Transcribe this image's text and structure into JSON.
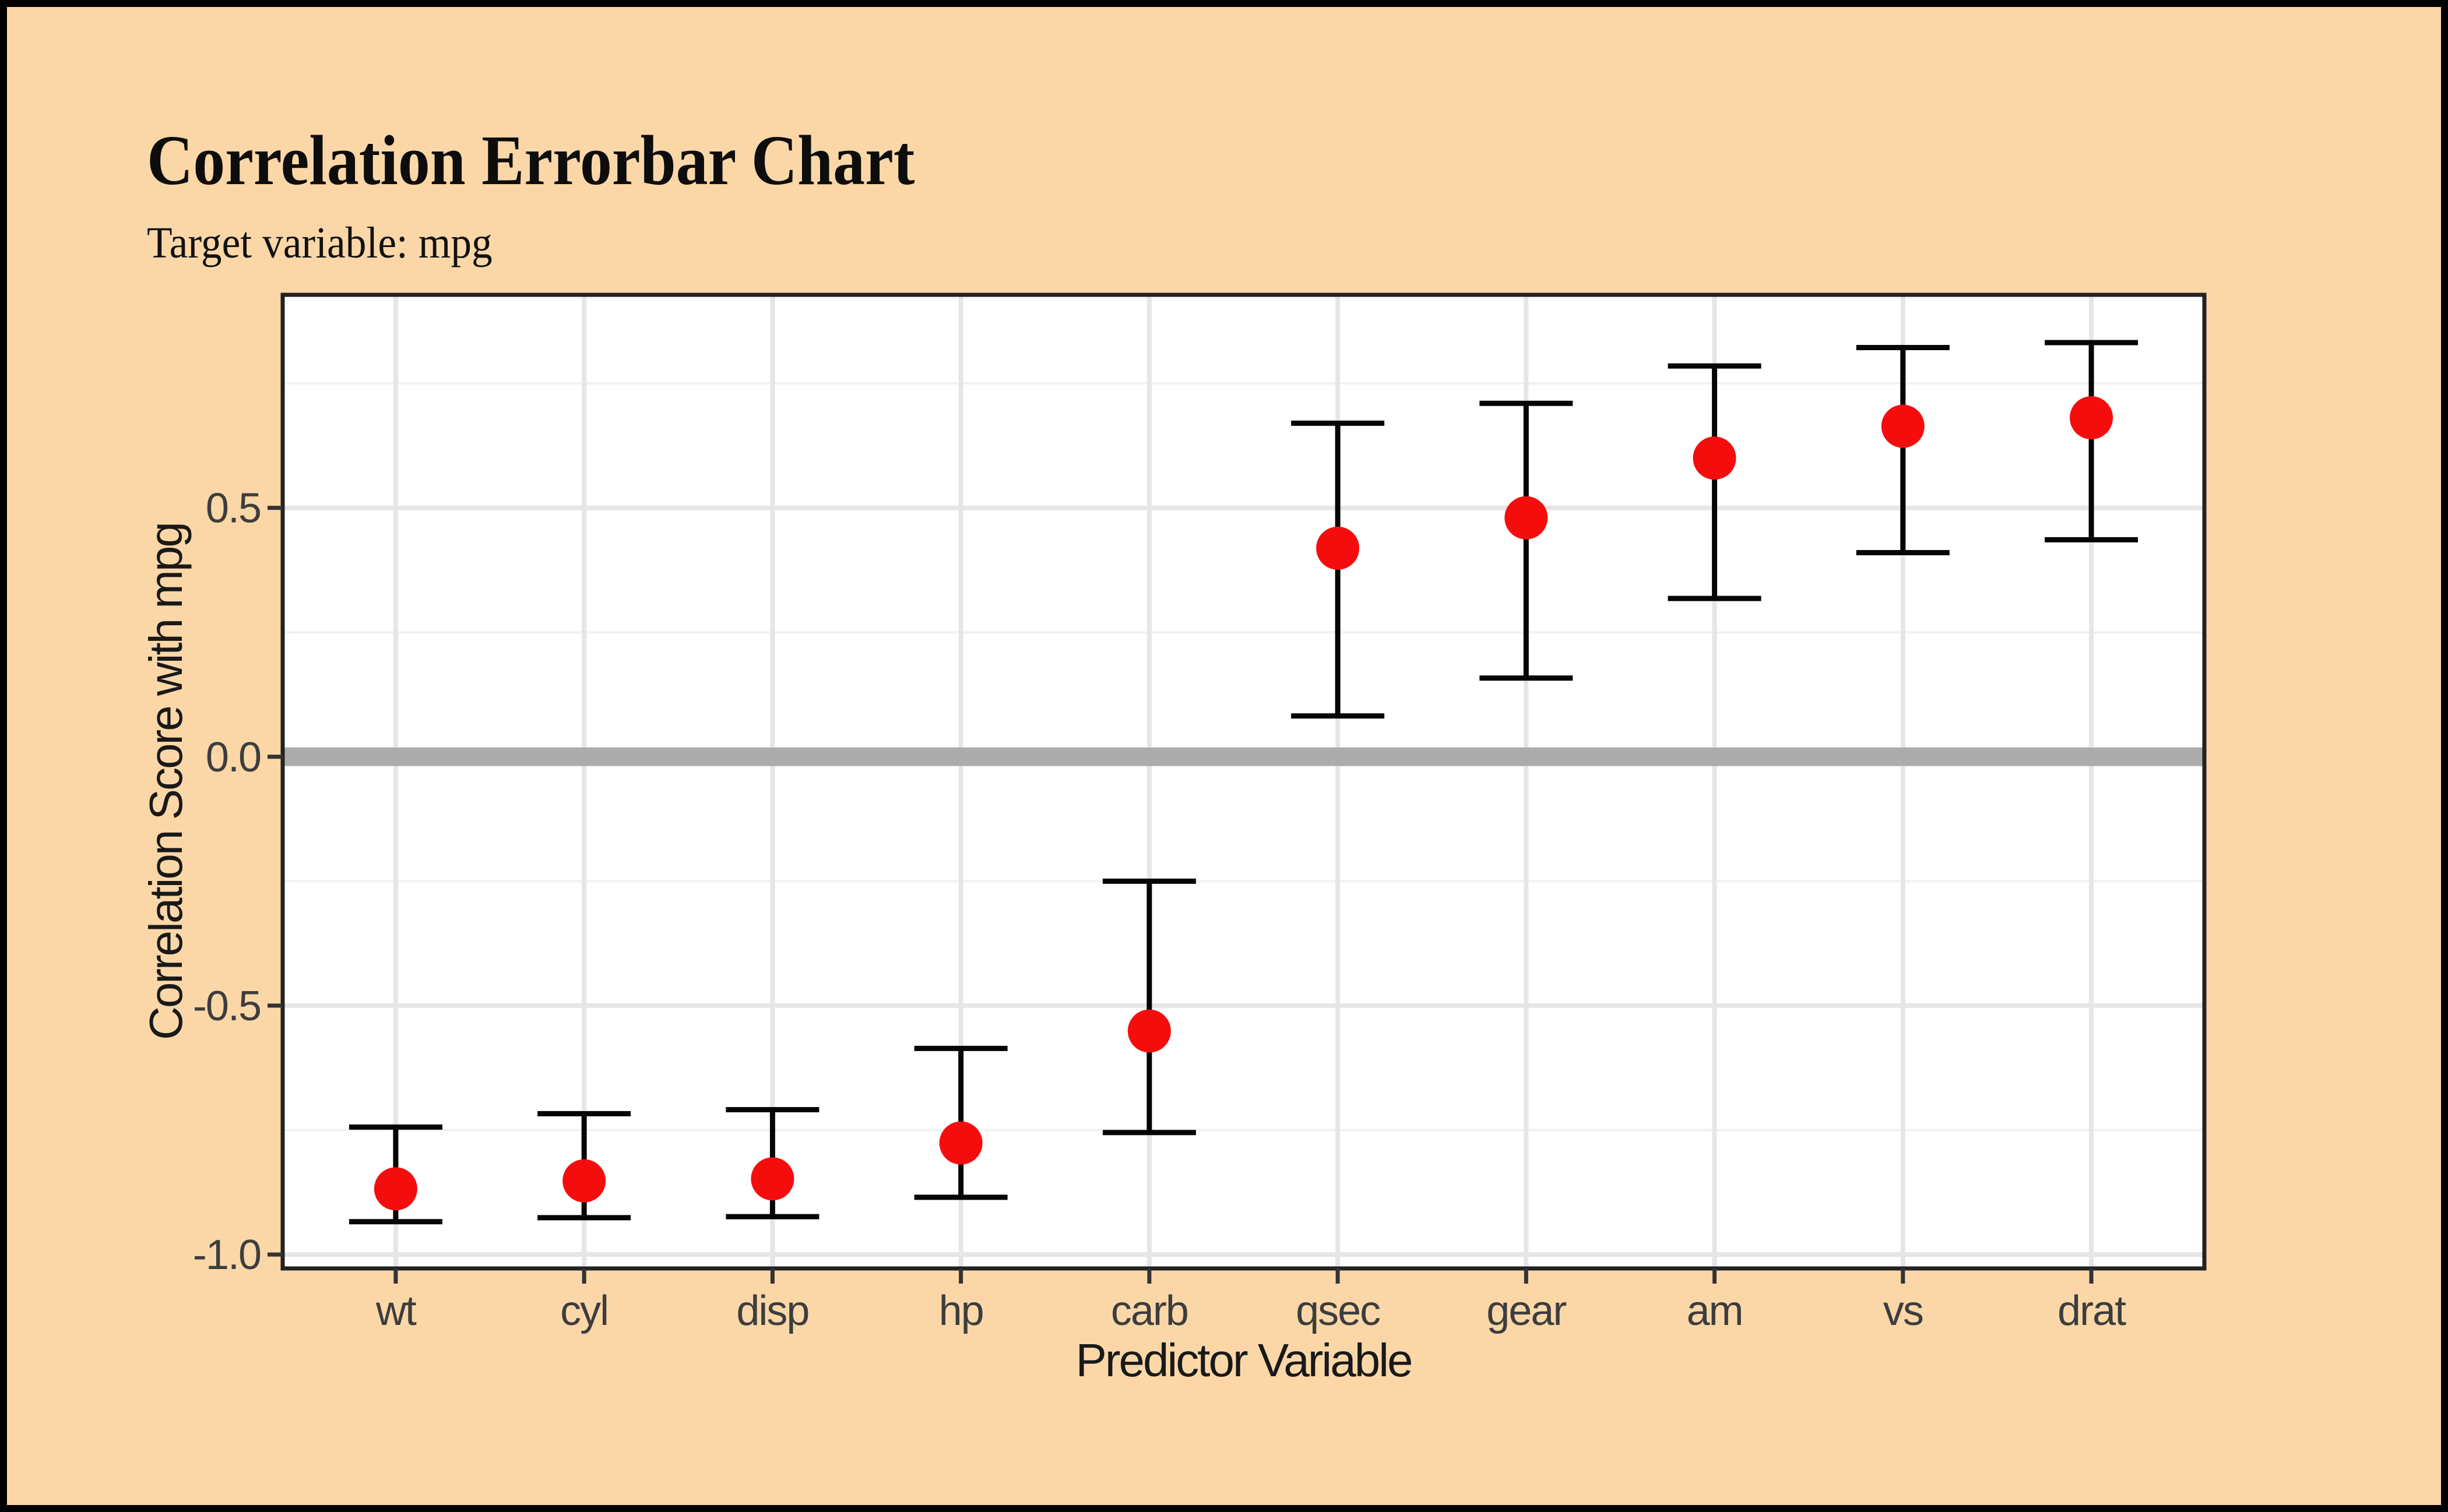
{
  "page": {
    "background": "#FBD7A8",
    "frame": "#000000"
  },
  "header": {
    "title": "Correlation Errorbar Chart",
    "subtitle": "Target variable: mpg"
  },
  "chart_data": {
    "type": "scatter",
    "subtype": "point-with-errorbar",
    "title": "Correlation Errorbar Chart",
    "subtitle": "Target variable: mpg",
    "xlabel": "Predictor Variable",
    "ylabel": "Correlation Score with mpg",
    "categories": [
      "wt",
      "cyl",
      "disp",
      "hp",
      "carb",
      "qsec",
      "gear",
      "am",
      "vs",
      "drat"
    ],
    "series": [
      {
        "name": "correlation_with_mpg",
        "values": [
          -0.868,
          -0.852,
          -0.848,
          -0.776,
          -0.551,
          0.419,
          0.48,
          0.6,
          0.664,
          0.681
        ]
      }
    ],
    "error_low": [
      -0.934,
      -0.926,
      -0.924,
      -0.885,
      -0.755,
      0.082,
      0.158,
      0.318,
      0.41,
      0.436
    ],
    "error_high": [
      -0.744,
      -0.717,
      -0.709,
      -0.586,
      -0.25,
      0.67,
      0.71,
      0.785,
      0.822,
      0.832
    ],
    "ylim": [
      -1.028,
      0.928
    ],
    "yticks": [
      {
        "value": 0.5,
        "label": "0.5"
      },
      {
        "value": 0.0,
        "label": "0.0"
      },
      {
        "value": -0.5,
        "label": "-0.5"
      },
      {
        "value": -1.0,
        "label": "-1.0"
      }
    ],
    "yminor": [
      0.75,
      0.25,
      -0.25,
      -0.75
    ],
    "zero_line_y": 0,
    "grid": true,
    "legend": "none",
    "colors": {
      "point": "#F50D0D",
      "errorbar": "#050505",
      "zero_line": "#ACACAC",
      "panel_background": "#FFFFFF",
      "panel_border": "#222222",
      "grid_major": "#E6E6E6",
      "grid_minor": "#F1F1F1",
      "tick_mark": "#333333",
      "tick_text": "#3D3D3D",
      "axis_title_text": "#191919",
      "background": "#FBD7A8"
    }
  }
}
